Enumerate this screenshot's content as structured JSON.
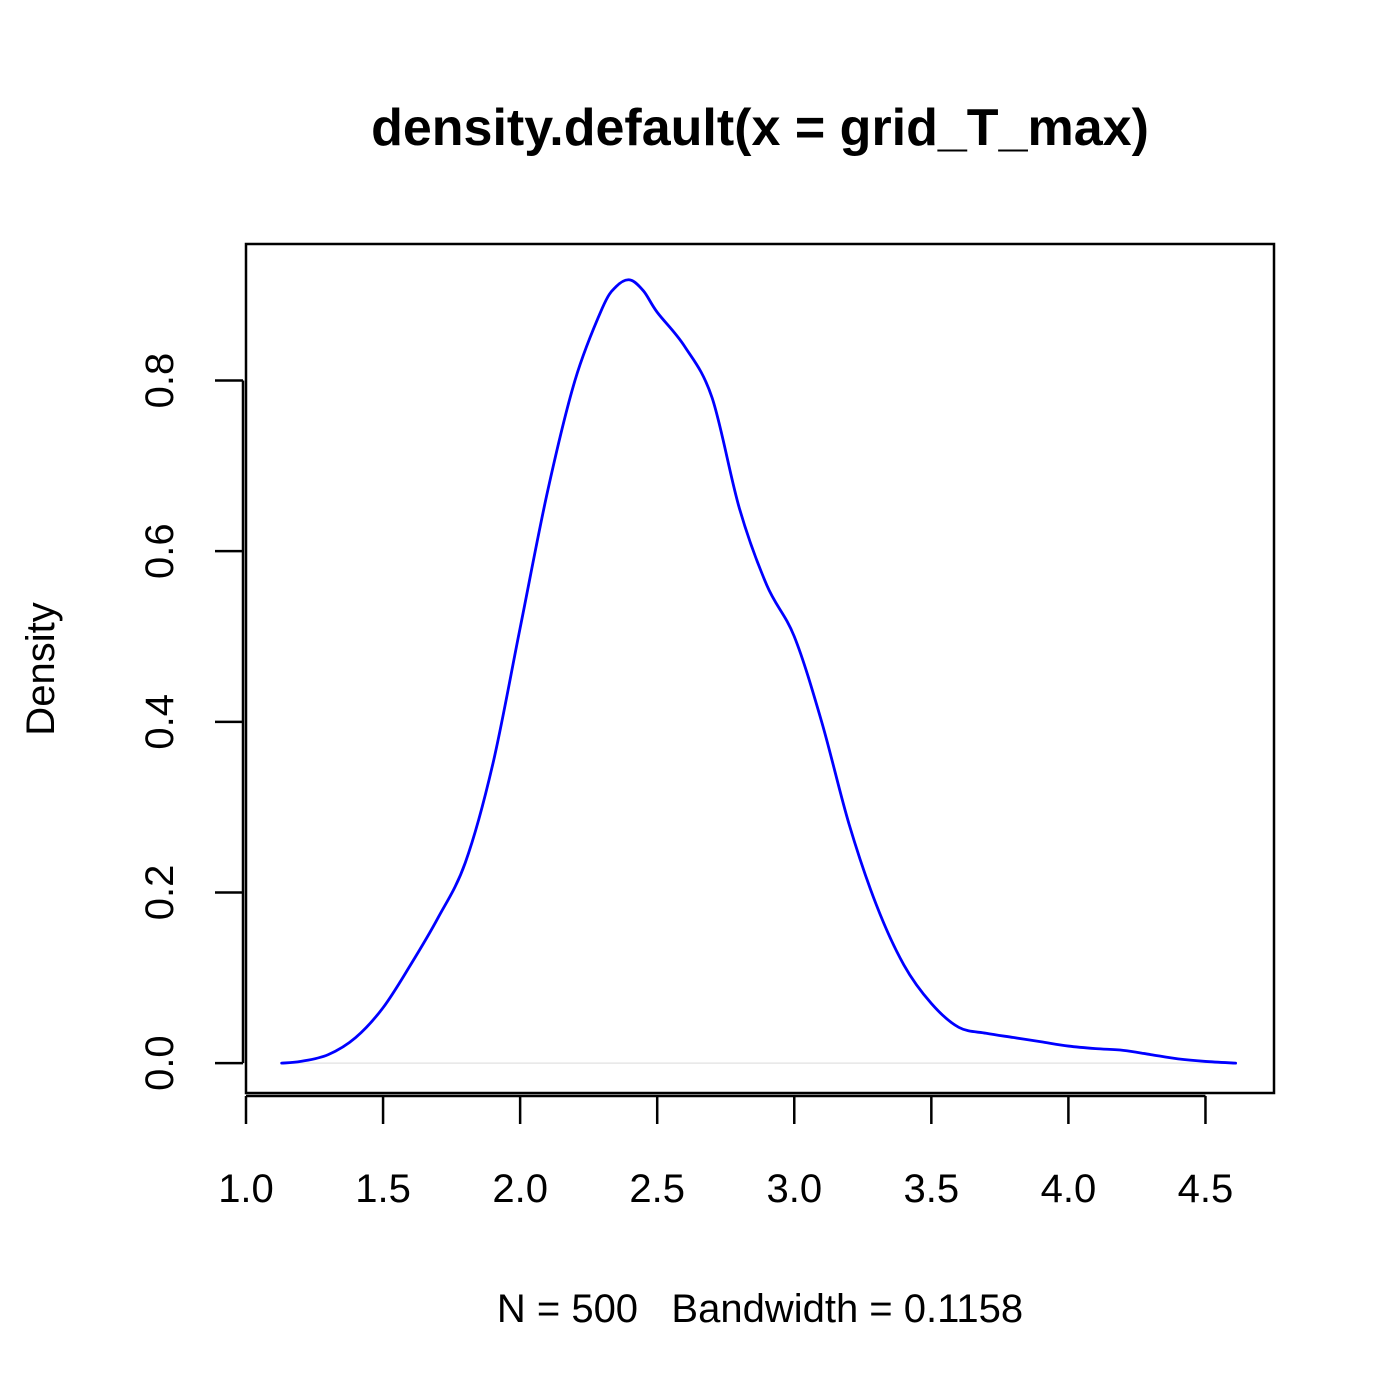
{
  "chart_data": {
    "type": "line",
    "title": "density.default(x = grid_T_max)",
    "xlabel": "N = 500   Bandwidth = 0.1158",
    "ylabel": "Density",
    "xlim": [
      1.0,
      4.75
    ],
    "ylim": [
      -0.035,
      0.96
    ],
    "xticks": [
      1.0,
      1.5,
      2.0,
      2.5,
      3.0,
      3.5,
      4.0,
      4.5
    ],
    "xtick_labels": [
      "1.0",
      "1.5",
      "2.0",
      "2.5",
      "3.0",
      "3.5",
      "4.0",
      "4.5"
    ],
    "yticks": [
      0.0,
      0.2,
      0.4,
      0.6,
      0.8
    ],
    "ytick_labels": [
      "0.0",
      "0.2",
      "0.4",
      "0.6",
      "0.8"
    ],
    "grid": false,
    "baseline": 0.0,
    "baseline_color": "#e6e6e6",
    "series": [
      {
        "color": "#0000ff",
        "x": [
          1.13,
          1.2,
          1.3,
          1.4,
          1.5,
          1.6,
          1.7,
          1.8,
          1.9,
          2.0,
          2.1,
          2.2,
          2.3,
          2.35,
          2.4,
          2.45,
          2.5,
          2.6,
          2.7,
          2.8,
          2.9,
          3.0,
          3.1,
          3.2,
          3.3,
          3.4,
          3.5,
          3.6,
          3.7,
          3.8,
          3.9,
          4.0,
          4.1,
          4.2,
          4.3,
          4.4,
          4.5,
          4.61
        ],
        "y": [
          0.0,
          0.002,
          0.01,
          0.03,
          0.065,
          0.115,
          0.17,
          0.235,
          0.35,
          0.51,
          0.67,
          0.8,
          0.885,
          0.91,
          0.918,
          0.905,
          0.88,
          0.84,
          0.78,
          0.65,
          0.56,
          0.5,
          0.4,
          0.28,
          0.185,
          0.115,
          0.07,
          0.042,
          0.035,
          0.03,
          0.025,
          0.02,
          0.017,
          0.015,
          0.01,
          0.005,
          0.002,
          0.0
        ]
      }
    ]
  }
}
